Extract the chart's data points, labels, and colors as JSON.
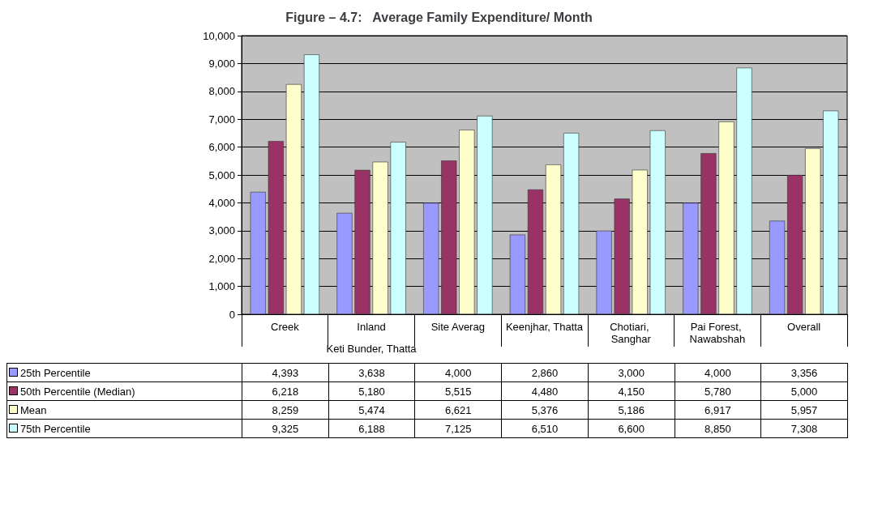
{
  "chart_data": {
    "type": "bar",
    "title": "Figure – 4.7:   Average Family Expenditure/ Month",
    "categories": [
      "Creek",
      "Inland",
      "Site Averag",
      "Keenjhar, Thatta",
      "Chotiari, Sanghar",
      "Pai Forest, Nawabshah",
      "Overall"
    ],
    "series": [
      {
        "name": "25th Percentile",
        "color": "#9999ff",
        "values": [
          4393,
          3638,
          4000,
          2860,
          3000,
          4000,
          3356
        ],
        "value_labels": [
          "4,393",
          "3,638",
          "4,000",
          "2,860",
          "3,000",
          "4,000",
          "3,356"
        ]
      },
      {
        "name": "50th Percentile (Median)",
        "color": "#993366",
        "values": [
          6218,
          5180,
          5515,
          4480,
          4150,
          5780,
          5000
        ],
        "value_labels": [
          "6,218",
          "5,180",
          "5,515",
          "4,480",
          "4,150",
          "5,780",
          "5,000"
        ]
      },
      {
        "name": "Mean",
        "color": "#ffffcc",
        "values": [
          8259,
          5474,
          6621,
          5376,
          5186,
          6917,
          5957
        ],
        "value_labels": [
          "8,259",
          "5,474",
          "6,621",
          "5,376",
          "5,186",
          "6,917",
          "5,957"
        ]
      },
      {
        "name": "75th Percentile",
        "color": "#ccffff",
        "values": [
          9325,
          6188,
          7125,
          6510,
          6600,
          8850,
          7308
        ],
        "value_labels": [
          "9,325",
          "6,188",
          "7,125",
          "6,510",
          "6,600",
          "8,850",
          "7,308"
        ]
      }
    ],
    "annotations": [
      "Keti Bunder, Thatta"
    ],
    "ylim": [
      0,
      10000
    ],
    "yticks": [
      0,
      {
        "value": 1000,
        "label": "1,000"
      },
      {
        "value": 2000,
        "label": "2,000"
      },
      {
        "value": 3000,
        "label": "3,000"
      },
      {
        "value": 4000,
        "label": "4,000"
      },
      {
        "value": 5000,
        "label": "5,000"
      },
      {
        "value": 6000,
        "label": "6,000"
      },
      {
        "value": 7000,
        "label": "7,000"
      },
      {
        "value": 8000,
        "label": "8,000"
      },
      {
        "value": 9000,
        "label": "9,000"
      },
      {
        "value": 10000,
        "label": "10,000"
      }
    ],
    "grid": "y",
    "legend": "bottom"
  }
}
